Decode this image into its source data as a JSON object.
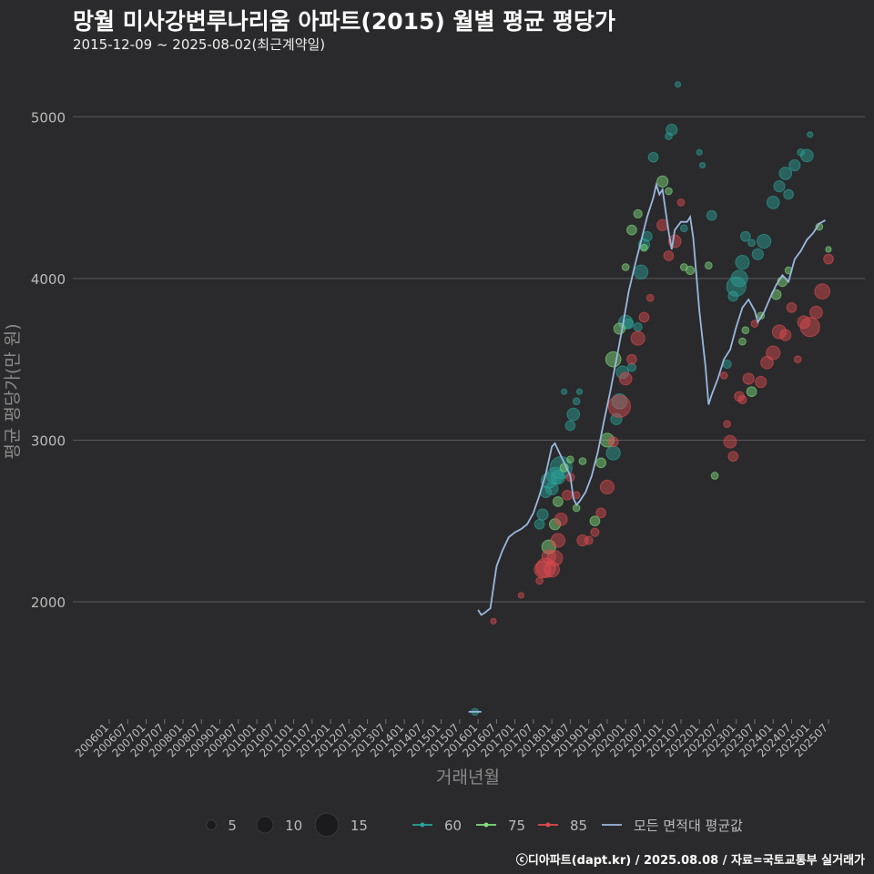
{
  "title": "망월 미사강변루나리움 아파트(2015) 월별 평균 평당가",
  "subtitle": "2015-12-09 ~ 2025-08-02(최근계약일)",
  "footer": "ⓒ디아파트(dapt.kr) / 2025.08.08 / 자료=국토교통부 실거래가",
  "chart_data": {
    "type": "scatter",
    "xlabel": "거래년월",
    "ylabel": "평균 평당가(만 원)",
    "x_range": [
      "2006-01",
      "2025-07"
    ],
    "ylim": [
      1150,
      5300
    ],
    "y_ticks": [
      2000,
      3000,
      4000,
      5000
    ],
    "grid": true,
    "x_tick_labels": [
      "200601",
      "200607",
      "200701",
      "200707",
      "200801",
      "200807",
      "200901",
      "200907",
      "201001",
      "201007",
      "201101",
      "201107",
      "201201",
      "201207",
      "201301",
      "201307",
      "201401",
      "201407",
      "201501",
      "201507",
      "201601",
      "201607",
      "201701",
      "201707",
      "201801",
      "201807",
      "201901",
      "201907",
      "202001",
      "202007",
      "202101",
      "202107",
      "202201",
      "202207",
      "202301",
      "202307",
      "202401",
      "202407",
      "202501",
      "202507"
    ],
    "size_legend": [
      5,
      10,
      15
    ],
    "colors": {
      "60": "#2aa39a",
      "75": "#82e07e",
      "85": "#e04b4f",
      "avg": "#9ab8de"
    },
    "series": [
      {
        "name": "60",
        "points": [
          [
            "2015-12",
            1320,
            3
          ],
          [
            "2017-09",
            2480,
            5
          ],
          [
            "2017-10",
            2540,
            6
          ],
          [
            "2017-11",
            2680,
            6
          ],
          [
            "2017-12",
            2750,
            9
          ],
          [
            "2018-01",
            2700,
            7
          ],
          [
            "2018-02",
            2780,
            10
          ],
          [
            "2018-03",
            2770,
            8
          ],
          [
            "2018-04",
            2830,
            14
          ],
          [
            "2018-05",
            3300,
            2
          ],
          [
            "2018-07",
            3090,
            5
          ],
          [
            "2018-08",
            3160,
            7
          ],
          [
            "2018-09",
            3240,
            3
          ],
          [
            "2018-10",
            3300,
            2
          ],
          [
            "2019-09",
            2920,
            8
          ],
          [
            "2019-10",
            3130,
            6
          ],
          [
            "2019-11",
            3240,
            9
          ],
          [
            "2019-12",
            3420,
            7
          ],
          [
            "2020-01",
            3730,
            8
          ],
          [
            "2020-02",
            3720,
            5
          ],
          [
            "2020-03",
            3450,
            4
          ],
          [
            "2020-05",
            3700,
            4
          ],
          [
            "2020-06",
            4040,
            8
          ],
          [
            "2020-07",
            4210,
            6
          ],
          [
            "2020-08",
            4260,
            5
          ],
          [
            "2020-10",
            4750,
            5
          ],
          [
            "2021-03",
            4880,
            3
          ],
          [
            "2021-04",
            4920,
            6
          ],
          [
            "2021-06",
            5200,
            2
          ],
          [
            "2021-08",
            4310,
            3
          ],
          [
            "2022-01",
            4780,
            2
          ],
          [
            "2022-02",
            4700,
            2
          ],
          [
            "2022-05",
            4390,
            5
          ],
          [
            "2022-10",
            3470,
            4
          ],
          [
            "2022-12",
            3890,
            5
          ],
          [
            "2023-01",
            3950,
            12
          ],
          [
            "2023-02",
            4000,
            10
          ],
          [
            "2023-03",
            4100,
            8
          ],
          [
            "2023-04",
            4260,
            5
          ],
          [
            "2023-06",
            4220,
            3
          ],
          [
            "2023-08",
            4150,
            6
          ],
          [
            "2023-10",
            4230,
            8
          ],
          [
            "2024-01",
            4470,
            7
          ],
          [
            "2024-03",
            4570,
            6
          ],
          [
            "2024-05",
            4650,
            7
          ],
          [
            "2024-06",
            4520,
            5
          ],
          [
            "2024-08",
            4700,
            6
          ],
          [
            "2024-10",
            4780,
            3
          ],
          [
            "2024-12",
            4760,
            7
          ],
          [
            "2025-01",
            4890,
            2
          ]
        ]
      },
      {
        "name": "75",
        "points": [
          [
            "2017-12",
            2340,
            8
          ],
          [
            "2018-02",
            2480,
            6
          ],
          [
            "2018-03",
            2620,
            5
          ],
          [
            "2018-05",
            2830,
            4
          ],
          [
            "2018-07",
            2880,
            3
          ],
          [
            "2018-09",
            2580,
            3
          ],
          [
            "2018-11",
            2870,
            3
          ],
          [
            "2019-03",
            2500,
            5
          ],
          [
            "2019-05",
            2860,
            5
          ],
          [
            "2019-07",
            3000,
            8
          ],
          [
            "2019-09",
            3500,
            9
          ],
          [
            "2019-11",
            3690,
            6
          ],
          [
            "2020-01",
            4070,
            3
          ],
          [
            "2020-03",
            4300,
            5
          ],
          [
            "2020-05",
            4400,
            4
          ],
          [
            "2020-07",
            4190,
            3
          ],
          [
            "2021-01",
            4600,
            6
          ],
          [
            "2021-03",
            4540,
            3
          ],
          [
            "2021-08",
            4070,
            3
          ],
          [
            "2021-10",
            4050,
            4
          ],
          [
            "2022-04",
            4080,
            3
          ],
          [
            "2022-06",
            2780,
            3
          ],
          [
            "2023-03",
            3610,
            3
          ],
          [
            "2023-04",
            3680,
            3
          ],
          [
            "2023-06",
            3300,
            5
          ],
          [
            "2023-09",
            3770,
            3
          ],
          [
            "2024-02",
            3900,
            5
          ],
          [
            "2024-04",
            3980,
            5
          ],
          [
            "2024-06",
            4050,
            3
          ],
          [
            "2025-04",
            4320,
            3
          ],
          [
            "2025-07",
            4180,
            2
          ]
        ]
      },
      {
        "name": "85",
        "points": [
          [
            "2016-06",
            1880,
            2
          ],
          [
            "2017-03",
            2040,
            2
          ],
          [
            "2017-09",
            2130,
            3
          ],
          [
            "2017-10",
            2200,
            10
          ],
          [
            "2017-11",
            2210,
            12
          ],
          [
            "2017-12",
            2280,
            8
          ],
          [
            "2018-01",
            2200,
            9
          ],
          [
            "2018-02",
            2270,
            9
          ],
          [
            "2018-03",
            2380,
            8
          ],
          [
            "2018-04",
            2510,
            7
          ],
          [
            "2018-06",
            2660,
            5
          ],
          [
            "2018-07",
            2770,
            4
          ],
          [
            "2018-09",
            2660,
            3
          ],
          [
            "2018-11",
            2380,
            6
          ],
          [
            "2019-01",
            2380,
            4
          ],
          [
            "2019-03",
            2430,
            4
          ],
          [
            "2019-05",
            2550,
            5
          ],
          [
            "2019-07",
            2710,
            8
          ],
          [
            "2019-09",
            2990,
            5
          ],
          [
            "2019-11",
            3210,
            14
          ],
          [
            "2020-01",
            3380,
            7
          ],
          [
            "2020-03",
            3500,
            5
          ],
          [
            "2020-05",
            3630,
            8
          ],
          [
            "2020-07",
            3760,
            5
          ],
          [
            "2020-09",
            3880,
            3
          ],
          [
            "2021-01",
            4330,
            6
          ],
          [
            "2021-03",
            4140,
            5
          ],
          [
            "2021-05",
            4230,
            7
          ],
          [
            "2021-07",
            4470,
            3
          ],
          [
            "2022-09",
            3400,
            3
          ],
          [
            "2022-10",
            3100,
            3
          ],
          [
            "2022-11",
            2990,
            7
          ],
          [
            "2022-12",
            2900,
            5
          ],
          [
            "2023-02",
            3270,
            5
          ],
          [
            "2023-03",
            3250,
            4
          ],
          [
            "2023-05",
            3380,
            6
          ],
          [
            "2023-07",
            3720,
            3
          ],
          [
            "2023-09",
            3360,
            6
          ],
          [
            "2023-11",
            3480,
            7
          ],
          [
            "2024-01",
            3540,
            8
          ],
          [
            "2024-03",
            3670,
            8
          ],
          [
            "2024-05",
            3650,
            6
          ],
          [
            "2024-07",
            3820,
            5
          ],
          [
            "2024-09",
            3500,
            3
          ],
          [
            "2024-11",
            3730,
            7
          ],
          [
            "2025-01",
            3700,
            12
          ],
          [
            "2025-03",
            3790,
            7
          ],
          [
            "2025-05",
            3920,
            9
          ],
          [
            "2025-07",
            4120,
            5
          ]
        ]
      }
    ],
    "avg_series": {
      "name": "모든 면적대 평균값",
      "points": [
        [
          "2016-01",
          1950
        ],
        [
          "2016-02",
          1920
        ],
        [
          "2016-03",
          1930
        ],
        [
          "2016-05",
          1960
        ],
        [
          "2016-07",
          2220
        ],
        [
          "2016-09",
          2320
        ],
        [
          "2016-11",
          2400
        ],
        [
          "2017-01",
          2430
        ],
        [
          "2017-03",
          2450
        ],
        [
          "2017-05",
          2480
        ],
        [
          "2017-07",
          2550
        ],
        [
          "2017-09",
          2660
        ],
        [
          "2017-11",
          2790
        ],
        [
          "2018-01",
          2960
        ],
        [
          "2018-02",
          2980
        ],
        [
          "2018-03",
          2940
        ],
        [
          "2018-05",
          2860
        ],
        [
          "2018-07",
          2780
        ],
        [
          "2018-08",
          2640
        ],
        [
          "2018-09",
          2600
        ],
        [
          "2018-10",
          2620
        ],
        [
          "2018-12",
          2680
        ],
        [
          "2019-02",
          2780
        ],
        [
          "2019-04",
          2930
        ],
        [
          "2019-06",
          3120
        ],
        [
          "2019-08",
          3300
        ],
        [
          "2019-10",
          3500
        ],
        [
          "2019-12",
          3700
        ],
        [
          "2020-02",
          3920
        ],
        [
          "2020-04",
          4080
        ],
        [
          "2020-06",
          4230
        ],
        [
          "2020-08",
          4380
        ],
        [
          "2020-10",
          4500
        ],
        [
          "2020-11",
          4580
        ],
        [
          "2020-12",
          4520
        ],
        [
          "2021-01",
          4550
        ],
        [
          "2021-03",
          4290
        ],
        [
          "2021-04",
          4180
        ],
        [
          "2021-05",
          4300
        ],
        [
          "2021-07",
          4350
        ],
        [
          "2021-09",
          4350
        ],
        [
          "2021-10",
          4380
        ],
        [
          "2021-11",
          4250
        ],
        [
          "2022-01",
          3800
        ],
        [
          "2022-03",
          3450
        ],
        [
          "2022-04",
          3220
        ],
        [
          "2022-05",
          3280
        ],
        [
          "2022-07",
          3380
        ],
        [
          "2022-09",
          3500
        ],
        [
          "2022-11",
          3560
        ],
        [
          "2023-01",
          3700
        ],
        [
          "2023-03",
          3820
        ],
        [
          "2023-05",
          3870
        ],
        [
          "2023-07",
          3800
        ],
        [
          "2023-08",
          3730
        ],
        [
          "2023-10",
          3790
        ],
        [
          "2023-12",
          3880
        ],
        [
          "2024-02",
          3960
        ],
        [
          "2024-04",
          4020
        ],
        [
          "2024-06",
          3980
        ],
        [
          "2024-08",
          4120
        ],
        [
          "2024-10",
          4170
        ],
        [
          "2024-12",
          4240
        ],
        [
          "2025-02",
          4280
        ],
        [
          "2025-04",
          4340
        ],
        [
          "2025-06",
          4360
        ]
      ]
    },
    "avg_line_special": [
      [
        "2015-12",
        1320
      ]
    ]
  }
}
